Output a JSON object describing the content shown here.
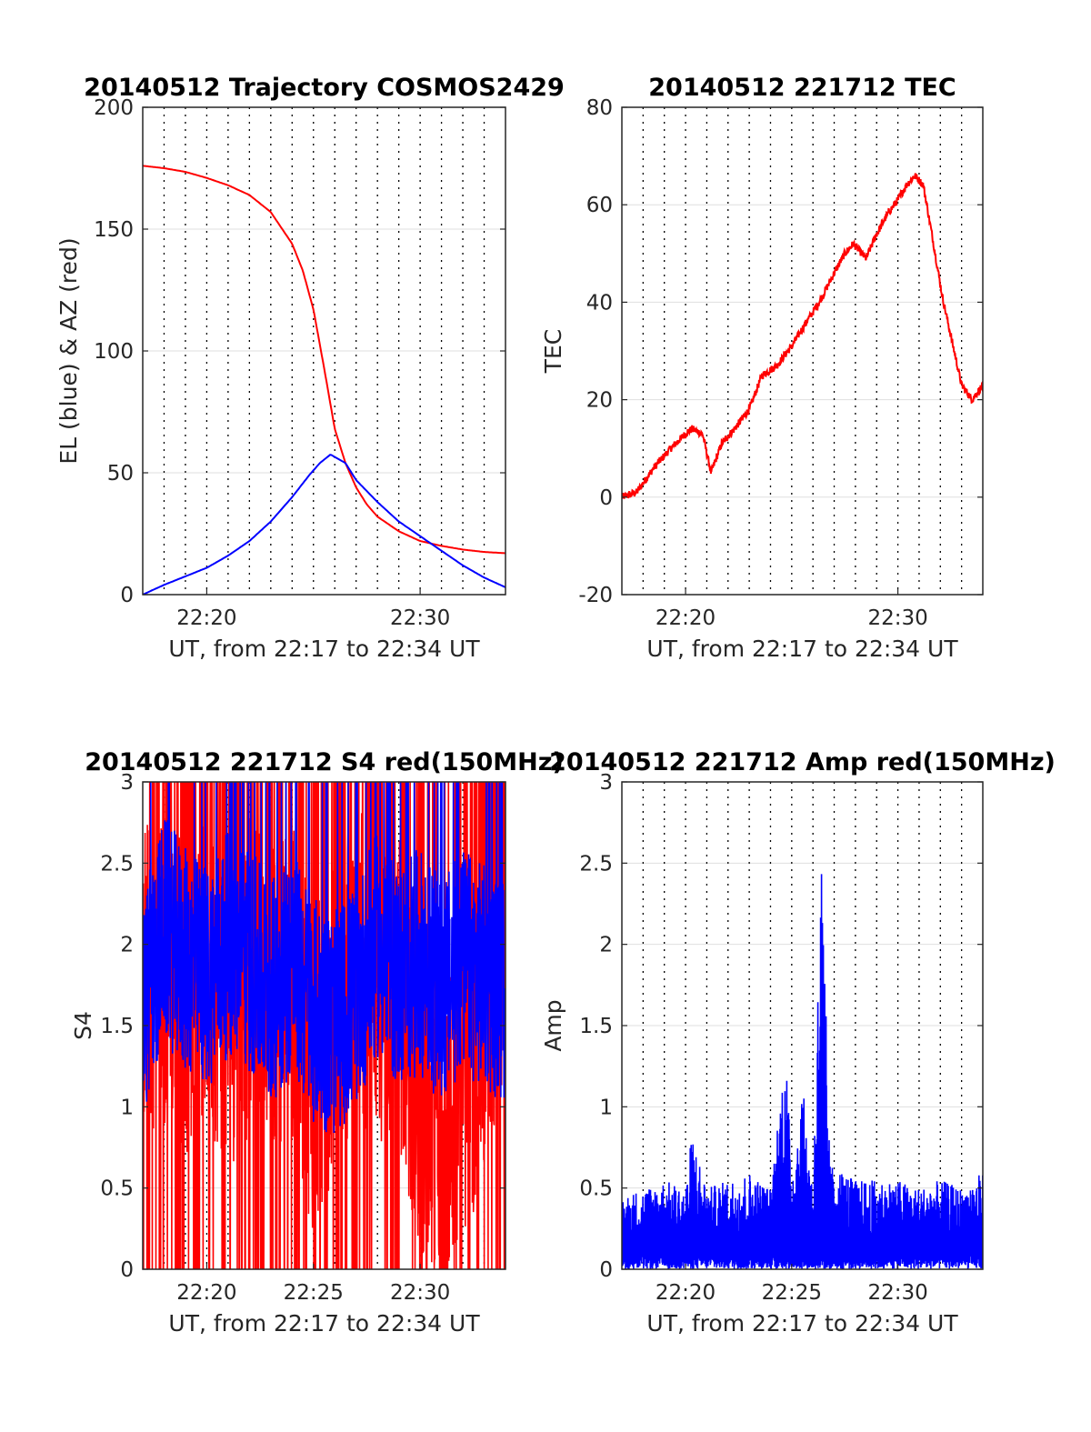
{
  "colors": {
    "red": "#ff0000",
    "blue": "#0000ff",
    "axis": "#262626",
    "hgrid": "#dfdfdf",
    "vgrid": "#000000"
  },
  "chart_data": [
    {
      "type": "line",
      "title": "20140512 Trajectory COSMOS2429",
      "xlabel": "UT, from 22:17 to 22:34 UT",
      "ylabel": "EL (blue) & AZ (red)",
      "xlim_minutes": [
        1337.0,
        1354.0
      ],
      "ylim": [
        0,
        200
      ],
      "yticks": [
        0,
        50,
        100,
        150,
        200
      ],
      "xtick_labels": [
        "22:20",
        "22:30"
      ],
      "xtick_values": [
        1340,
        1350
      ],
      "grid": true,
      "series": [
        {
          "color": "red",
          "x": [
            1337.0,
            1338.0,
            1339.0,
            1340.0,
            1341.0,
            1342.0,
            1343.0,
            1344.0,
            1344.5,
            1345.0,
            1345.5,
            1346.0,
            1346.5,
            1347.0,
            1347.5,
            1348.0,
            1349.0,
            1350.0,
            1351.0,
            1352.0,
            1353.0,
            1354.0
          ],
          "y": [
            176,
            175,
            173.5,
            171,
            168,
            164,
            157,
            144,
            133,
            117,
            93,
            68,
            54,
            44,
            37,
            32,
            26,
            22,
            20,
            18.5,
            17.5,
            17
          ]
        },
        {
          "color": "blue",
          "x": [
            1337.0,
            1338.0,
            1339.0,
            1340.0,
            1341.0,
            1342.0,
            1343.0,
            1344.0,
            1344.8,
            1345.3,
            1345.8,
            1346.5,
            1347.0,
            1348.0,
            1349.0,
            1350.0,
            1351.0,
            1352.0,
            1353.0,
            1354.0
          ],
          "y": [
            0,
            4,
            7.5,
            11,
            16,
            22,
            30,
            40,
            49,
            54,
            57.5,
            54,
            47,
            38,
            30,
            24,
            18,
            12,
            7,
            3
          ]
        }
      ]
    },
    {
      "type": "line",
      "title": "20140512 221712 TEC",
      "xlabel": "UT, from 22:17 to 22:34 UT",
      "ylabel": "TEC",
      "xlim_minutes": [
        1337.0,
        1354.0
      ],
      "ylim": [
        -20,
        80
      ],
      "yticks": [
        -20,
        0,
        20,
        40,
        60,
        80
      ],
      "xtick_labels": [
        "22:20",
        "22:30"
      ],
      "xtick_values": [
        1340,
        1350
      ],
      "grid": true,
      "series": [
        {
          "color": "red",
          "x": [
            1337.0,
            1337.7,
            1338.5,
            1339.3,
            1340.0,
            1340.3,
            1340.8,
            1341.2,
            1341.7,
            1342.3,
            1343.0,
            1343.6,
            1344.3,
            1345.0,
            1345.7,
            1346.3,
            1347.0,
            1347.5,
            1347.9,
            1348.5,
            1349.0,
            1349.5,
            1350.0,
            1350.4,
            1350.8,
            1351.2,
            1351.6,
            1352.1,
            1352.6,
            1353.0,
            1353.5,
            1354.0
          ],
          "y": [
            0,
            1,
            6,
            10,
            13,
            14,
            13,
            5,
            11,
            14,
            18,
            25,
            27,
            31,
            36,
            40,
            46,
            50,
            52,
            49,
            54,
            58,
            61,
            64,
            66,
            64,
            54,
            41,
            31,
            23,
            20,
            23
          ]
        }
      ]
    },
    {
      "type": "line",
      "title": "20140512 221712 S4 red(150MHz)",
      "xlabel": "UT, from 22:17 to 22:34 UT",
      "ylabel": "S4",
      "xlim_minutes": [
        1337.0,
        1354.0
      ],
      "ylim": [
        0,
        3
      ],
      "yticks": [
        0,
        0.5,
        1,
        1.5,
        2,
        2.5,
        3
      ],
      "xtick_labels": [
        "22:20",
        "22:25",
        "22:30"
      ],
      "xtick_values": [
        1340,
        1345,
        1350
      ],
      "grid": true,
      "series": [
        {
          "color": "red",
          "x": [
            1337.0,
            1338.0,
            1339.0,
            1340.0,
            1341.0,
            1342.0,
            1343.0,
            1344.0,
            1345.0,
            1346.0,
            1347.0,
            1348.0,
            1349.0,
            1350.0,
            1351.0,
            1352.0,
            1353.0,
            1354.0
          ],
          "y": [
            1.8,
            1.9,
            1.7,
            1.9,
            1.6,
            1.8,
            1.7,
            1.8,
            1.2,
            1.6,
            1.9,
            1.8,
            1.7,
            1.1,
            0.7,
            1.2,
            1.5,
            1.8
          ]
        },
        {
          "color": "blue",
          "x": [
            1337.0,
            1338.0,
            1339.0,
            1340.0,
            1341.0,
            1342.0,
            1343.0,
            1344.0,
            1345.0,
            1346.0,
            1347.0,
            1348.0,
            1349.0,
            1350.0,
            1351.0,
            1352.0,
            1353.0,
            1354.0
          ],
          "y": [
            1.6,
            2.1,
            1.9,
            1.8,
            2.0,
            1.9,
            1.7,
            1.9,
            1.6,
            1.5,
            1.7,
            2.0,
            1.8,
            1.9,
            1.7,
            1.9,
            1.8,
            1.7
          ]
        }
      ]
    },
    {
      "type": "line",
      "title": "20140512 221712 Amp red(150MHz)",
      "xlabel": "UT, from 22:17 to 22:34 UT",
      "ylabel": "Amp",
      "xlim_minutes": [
        1337.0,
        1354.0
      ],
      "ylim": [
        0,
        3
      ],
      "yticks": [
        0,
        0.5,
        1,
        1.5,
        2,
        2.5,
        3
      ],
      "xtick_labels": [
        "22:20",
        "22:25",
        "22:30"
      ],
      "xtick_values": [
        1340,
        1345,
        1350
      ],
      "grid": true,
      "series": [
        {
          "color": "blue",
          "x": [
            1337.0,
            1338.0,
            1339.0,
            1340.0,
            1340.3,
            1341.0,
            1342.0,
            1343.0,
            1344.0,
            1344.7,
            1345.0,
            1345.5,
            1346.0,
            1346.4,
            1346.8,
            1347.5,
            1348.0,
            1349.0,
            1350.0,
            1351.0,
            1352.0,
            1353.0,
            1354.0
          ],
          "y": [
            0.45,
            0.5,
            0.55,
            0.5,
            0.85,
            0.5,
            0.55,
            0.6,
            0.5,
            1.4,
            0.6,
            1.15,
            0.5,
            2.65,
            0.65,
            0.6,
            0.55,
            0.55,
            0.55,
            0.5,
            0.55,
            0.5,
            0.6
          ]
        }
      ]
    }
  ]
}
